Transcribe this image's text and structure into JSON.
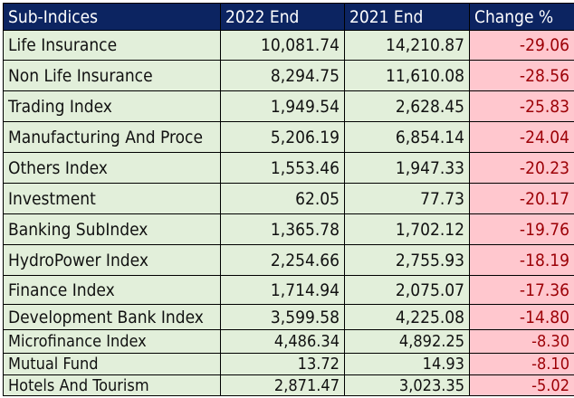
{
  "table": {
    "headers": [
      "Sub-Indices",
      "2022 End",
      "2021 End",
      "Change %"
    ],
    "rows": [
      [
        "Life Insurance",
        "10,081.74",
        "14,210.87",
        "-29.06"
      ],
      [
        "Non Life Insurance",
        "8,294.75",
        "11,610.08",
        "-28.56"
      ],
      [
        "Trading Index",
        "1,949.54",
        "2,628.45",
        "-25.83"
      ],
      [
        "Manufacturing And Proce",
        "5,206.19",
        "6,854.14",
        "-24.04"
      ],
      [
        "Others Index",
        "1,553.46",
        "1,947.33",
        "-20.23"
      ],
      [
        "Investment",
        "62.05",
        "77.73",
        "-20.17"
      ],
      [
        "Banking SubIndex",
        "1,365.78",
        "1,702.12",
        "-19.76"
      ],
      [
        "HydroPower Index",
        "2,254.66",
        "2,755.93",
        "-18.19"
      ],
      [
        "Finance Index",
        "1,714.94",
        "2,075.07",
        "-17.36"
      ],
      [
        "Development Bank Index",
        "3,599.58",
        "4,225.08",
        "-14.80"
      ],
      [
        "Microfinance Index",
        "4,486.34",
        "4,892.25",
        "-8.30"
      ],
      [
        "Mutual Fund",
        "13.72",
        "14.93",
        "-8.10"
      ],
      [
        "Hotels And Tourism",
        "2,871.47",
        "3,023.35",
        "-5.02"
      ]
    ]
  },
  "colors": {
    "header_bg": "#0c2461",
    "cell_bg": "#e2efda",
    "negative_bg": "#ffc7ce",
    "negative_text": "#9c0006"
  }
}
